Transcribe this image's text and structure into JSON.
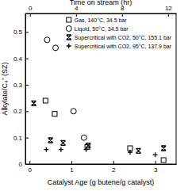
{
  "chart_data": {
    "type": "scatter",
    "xlabel": "Catalyst Age (g butene/g catalyst)",
    "x2label": "Time on stream (hr)",
    "ylabel": "Alkylate/C₄⁼ (SZ)",
    "xlim": [
      -0.1,
      3.5
    ],
    "xticks": [
      0,
      1,
      2,
      3
    ],
    "x2lim": [
      -0.4,
      12.7
    ],
    "x2ticks": [
      0,
      4,
      8,
      12
    ],
    "ylim": [
      0,
      0.57
    ],
    "yticks": [
      0,
      0.1,
      0.2,
      0.3,
      0.4,
      0.5
    ],
    "legend": "upper right",
    "series": [
      {
        "name": "Gas, 140°C, 34.5 bar",
        "color": "#000000",
        "marker": "square",
        "x": [
          0.38,
          0.6,
          1.38,
          2.4,
          3.2
        ],
        "values": [
          0.24,
          0.19,
          0.065,
          0.06,
          0.015
        ]
      },
      {
        "name": "Liquid, 50°C, 34.5 bar",
        "color": "#000000",
        "marker": "circle",
        "x": [
          0.42,
          0.62,
          1.05,
          1.3
        ],
        "values": [
          0.47,
          0.44,
          0.2,
          0.1
        ]
      },
      {
        "name": "Supercritical with CO2, 50°C, 155.1 bar",
        "color": "#000000",
        "marker": "asterisk",
        "x": [
          0.1,
          0.5,
          0.8,
          1.4,
          2.6,
          3.2
        ],
        "values": [
          0.23,
          0.09,
          0.08,
          0.07,
          0.05,
          0.06
        ]
      },
      {
        "name": "Supercritical with CO2, 95°C, 137.9 bar",
        "color": "#000000",
        "marker": "plus",
        "x": [
          0.4,
          0.75,
          1.35,
          2.4,
          3.0
        ],
        "values": [
          0.055,
          0.055,
          0.055,
          0.045,
          0.035
        ]
      }
    ]
  }
}
